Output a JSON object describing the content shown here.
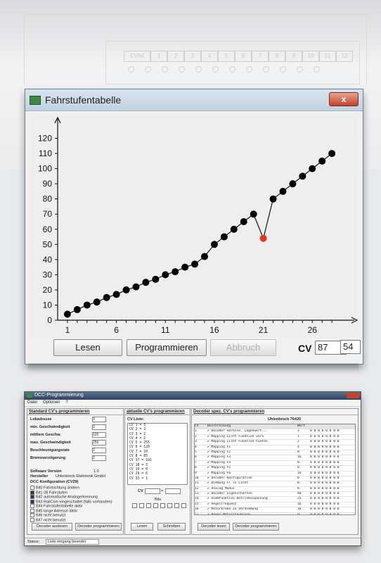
{
  "background_window": {
    "header_cells": [
      "CV64",
      "1",
      "2",
      "3",
      "4",
      "5",
      "6",
      "7",
      "8",
      "9",
      "10",
      "11",
      "12"
    ]
  },
  "main_window": {
    "title": "Fahrstufentabelle",
    "close_label": "x",
    "buttons": {
      "read": "Lesen",
      "program": "Programmieren",
      "abort": "Abbruch"
    },
    "cv_label": "CV",
    "cv_number": "87",
    "equals": "=",
    "cv_value": "54"
  },
  "chart_data": {
    "type": "line",
    "x": [
      1,
      2,
      3,
      4,
      5,
      6,
      7,
      8,
      9,
      10,
      11,
      12,
      13,
      14,
      15,
      16,
      17,
      18,
      19,
      20,
      21,
      22,
      23,
      24,
      25,
      26,
      27,
      28
    ],
    "values": [
      4,
      7,
      10,
      12,
      15,
      17,
      20,
      22,
      25,
      27,
      30,
      32,
      35,
      37,
      42,
      50,
      55,
      60,
      65,
      70,
      54,
      80,
      85,
      90,
      95,
      100,
      105,
      110
    ],
    "highlight_index": 20,
    "xticks": [
      1,
      6,
      11,
      16,
      21,
      26
    ],
    "yticks": [
      0,
      10,
      20,
      30,
      40,
      50,
      60,
      70,
      80,
      90,
      100,
      110,
      120
    ],
    "xlim": [
      0,
      30
    ],
    "ylim": [
      0,
      130
    ],
    "colors": {
      "line": "#111111",
      "point": "#000000",
      "highlight": "#e0391c",
      "axis": "#111111"
    }
  },
  "second_window": {
    "title": "DCC-Programmierung",
    "menu": [
      "Datei",
      "Optionen",
      "?"
    ],
    "panel_left": {
      "header": "Standard CV's programmieren",
      "fields": [
        {
          "label": "Lokadresse",
          "value": "3"
        },
        {
          "label": "min. Geschwindigkeit",
          "value": "2"
        },
        {
          "label": "mittlere Geschw.",
          "value": "120"
        },
        {
          "label": "max. Geschwindigkeit",
          "value": "255"
        },
        {
          "label": "Beschleunigungsrate",
          "value": "2"
        },
        {
          "label": "Bremsverzögerung",
          "value": "2"
        }
      ],
      "software_label": "Software Version",
      "software_value": "1.0",
      "maker_label": "Hersteller",
      "maker_value": "Uhlenbrock Elektronik GmbH",
      "config_header": "DCC Konfiguration (CV29)",
      "checks": [
        "Bit0 Fahrtrichtung ändern",
        "Bit1 28 Fahrstufen",
        "Bit2 automatische Analogerkennung",
        "Bit3 RailCom eingeschaltet (falls vorhanden)",
        "Bit4 Fahrstufentabelle aktiv",
        "Bit5 lange Adresse aktiv",
        "Bit6 nicht benutzt",
        "Bit7 nicht benutzt"
      ],
      "btn_read": "Decoder auslesen",
      "btn_program": "Decoder programmieren"
    },
    "panel_mid": {
      "header": "aktuelle CV's programmieren",
      "list_title": "CV Liste:",
      "items": [
        "CV  1 =  3",
        "CV  2 =  2",
        "CV  3 =  2",
        "CV  4 =  2",
        "CV  5 = 255",
        "CV  6 = 120",
        "CV  7 = 10",
        "CV  8 = 85",
        "CV 17 = 192",
        "CV 18 =  3",
        "CV 19 =  0",
        "CV 29 =  6",
        "CV 33 =  1"
      ],
      "cv_label": "CV",
      "eq": "=",
      "bits_label": "Bits",
      "btn_read": "Lesen",
      "btn_write": "Schreiben"
    },
    "panel_right": {
      "header": "Decoder spez. CV's programmieren",
      "subtitle": "Uhlenbrock 76420",
      "col_cv": "CV",
      "col_desc": "Beschreibung",
      "col_wert": "Wert",
      "rows": [
        {
          "cv": "1",
          "desc": "Decoder Adresse, Lagenwert...",
          "val": "3"
        },
        {
          "cv": "2",
          "desc": "Mapping Licht Funktion vorn",
          "val": "1"
        },
        {
          "cv": "3",
          "desc": "Mapping Licht Funktion hinten",
          "val": "2"
        },
        {
          "cv": "4",
          "desc": "Mapping F1",
          "val": "4"
        },
        {
          "cv": "5",
          "desc": "Mapping F2",
          "val": "8"
        },
        {
          "cv": "6",
          "desc": "Mapping F3",
          "val": "16"
        },
        {
          "cv": "7",
          "desc": "Mapping F4",
          "val": "0"
        },
        {
          "cv": "8",
          "desc": "Mapping F5",
          "val": "0"
        },
        {
          "cv": "9",
          "desc": "Mapping F6",
          "val": "16"
        },
        {
          "cv": "10",
          "desc": "Decoder Konfiguration",
          "val": "0"
        },
        {
          "cv": "11",
          "desc": "Dimmung Fl in Licht",
          "val": "0"
        },
        {
          "cv": "12",
          "desc": "Analog Modus",
          "val": "0"
        },
        {
          "cv": "13",
          "desc": "Decoder Eigenschaften",
          "val": "48"
        },
        {
          "cv": "14",
          "desc": "Dimmfunktion Betriebsspannung",
          "val": "25"
        },
        {
          "cv": "15",
          "desc": "Regelfrequenz",
          "val": "16"
        },
        {
          "cv": "16",
          "desc": "Motorbrake ZS Verdimmung",
          "val": "16"
        },
        {
          "cv": "17",
          "desc": "Power Motorsteuerung",
          "val": "0"
        }
      ],
      "btn_read": "Decoder lesen",
      "btn_program": "Decoder programmieren"
    },
    "status_label": "Status:",
    "status_value": "Liste eingang beendet"
  }
}
